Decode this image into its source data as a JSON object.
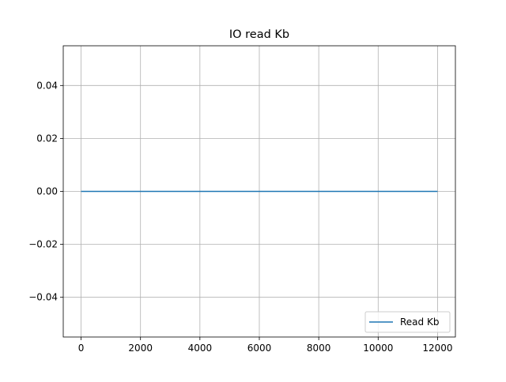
{
  "chart_data": {
    "type": "line",
    "title": "IO read Kb",
    "xlabel": "",
    "ylabel": "",
    "xlim": [
      -600,
      12600
    ],
    "ylim": [
      -0.055,
      0.055
    ],
    "x_ticks": [
      0,
      2000,
      4000,
      6000,
      8000,
      10000,
      12000
    ],
    "x_tick_labels": [
      "0",
      "2000",
      "4000",
      "6000",
      "8000",
      "10000",
      "12000"
    ],
    "y_ticks": [
      -0.04,
      -0.02,
      0.0,
      0.02,
      0.04
    ],
    "y_tick_labels": [
      "−0.04",
      "−0.02",
      "0.00",
      "0.02",
      "0.04"
    ],
    "grid": true,
    "legend_position": "lower-right",
    "series": [
      {
        "name": "Read Kb",
        "color": "#1f77b4",
        "x": [
          0,
          12000
        ],
        "y": [
          0,
          0
        ]
      }
    ]
  }
}
